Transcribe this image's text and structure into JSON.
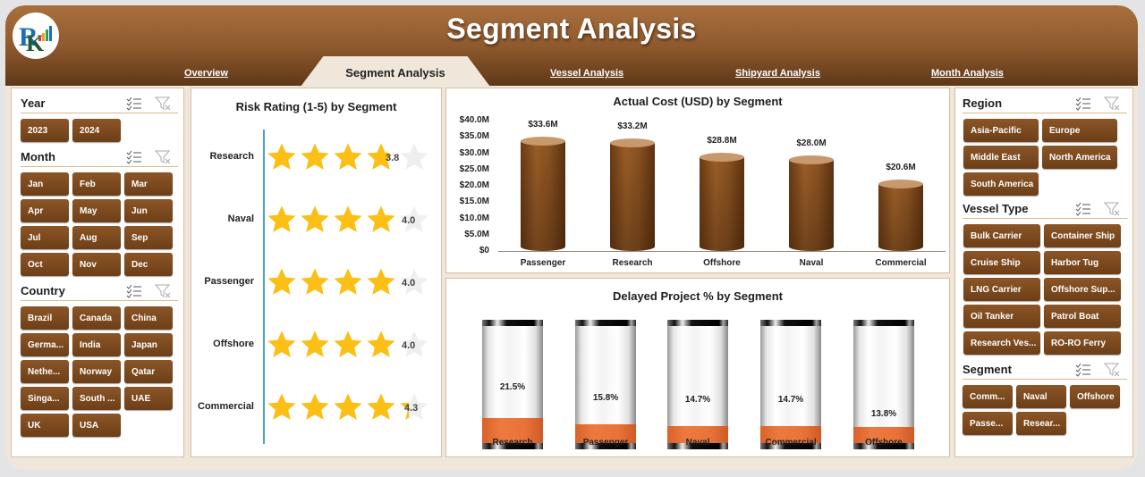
{
  "header": {
    "title": "Segment Analysis",
    "logo": "rk-logo-icon",
    "tabs": [
      {
        "label": "Overview",
        "active": false
      },
      {
        "label": "Segment Analysis",
        "active": true
      },
      {
        "label": "Vessel Analysis",
        "active": false
      },
      {
        "label": "Shipyard Analysis",
        "active": false
      },
      {
        "label": "Month Analysis",
        "active": false
      }
    ]
  },
  "colors": {
    "header_brown": "#8f5a2e",
    "button_brown": "#7a4a1f",
    "cylinder_top": "#c9996e",
    "star_gold": "#fbbf16",
    "delay_orange": "#e8733a",
    "background": "#f0e6da"
  },
  "left_slicers": {
    "year": {
      "title": "Year",
      "items": [
        "2023",
        "2024"
      ]
    },
    "month": {
      "title": "Month",
      "items": [
        "Jan",
        "Feb",
        "Mar",
        "Apr",
        "May",
        "Jun",
        "Jul",
        "Aug",
        "Sep",
        "Oct",
        "Nov",
        "Dec"
      ]
    },
    "country": {
      "title": "Country",
      "items": [
        "Brazil",
        "Canada",
        "China",
        "Germa...",
        "India",
        "Japan",
        "Nethe...",
        "Norway",
        "Qatar",
        "Singa...",
        "South ...",
        "UAE",
        "UK",
        "USA"
      ]
    }
  },
  "right_slicers": {
    "region": {
      "title": "Region",
      "items": [
        "Asia-Pacific",
        "Europe",
        "Middle East",
        "North America",
        "South America"
      ]
    },
    "vessel_type": {
      "title": "Vessel Type",
      "items": [
        "Bulk Carrier",
        "Container Ship",
        "Cruise Ship",
        "Harbor Tug",
        "LNG Carrier",
        "Offshore Sup...",
        "Oil Tanker",
        "Patrol Boat",
        "Research Ves...",
        "RO-RO Ferry"
      ]
    },
    "segment": {
      "title": "Segment",
      "items": [
        "Comm...",
        "Naval",
        "Offshore",
        "Passe...",
        "Resear..."
      ]
    }
  },
  "chart_data": [
    {
      "type": "bar",
      "title": "Risk Rating (1-5) by Segment",
      "categories": [
        "Research",
        "Naval",
        "Passenger",
        "Offshore",
        "Commercial"
      ],
      "values": [
        3.8,
        4.0,
        4.0,
        4.0,
        4.3
      ],
      "labels": [
        "3.8",
        "4.0",
        "4.0",
        "4.0",
        "4.3"
      ],
      "orientation": "horizontal",
      "style": "star-rating",
      "xlim": [
        0,
        5
      ]
    },
    {
      "type": "bar",
      "title": "Actual Cost (USD) by Segment",
      "categories": [
        "Passenger",
        "Research",
        "Offshore",
        "Naval",
        "Commercial"
      ],
      "values": [
        33.6,
        33.2,
        28.8,
        28.0,
        20.6
      ],
      "labels": [
        "$33.6M",
        "$33.2M",
        "$28.8M",
        "$28.0M",
        "$20.6M"
      ],
      "yticks": [
        "$40.0M",
        "$35.0M",
        "$30.0M",
        "$25.0M",
        "$20.0M",
        "$15.0M",
        "$10.0M",
        "$5.0M",
        "$0"
      ],
      "ylim": [
        0,
        40
      ],
      "ylabel": "",
      "xlabel": "",
      "style": "cylinder"
    },
    {
      "type": "bar",
      "title": "Delayed Project % by Segment",
      "categories": [
        "Research",
        "Passenger",
        "Naval",
        "Commercial",
        "Offshore"
      ],
      "values": [
        21.5,
        15.8,
        14.7,
        14.7,
        13.8
      ],
      "labels": [
        "21.5%",
        "15.8%",
        "14.7%",
        "14.7%",
        "13.8%"
      ],
      "ylim": [
        0,
        100
      ],
      "style": "tube-fill"
    }
  ]
}
